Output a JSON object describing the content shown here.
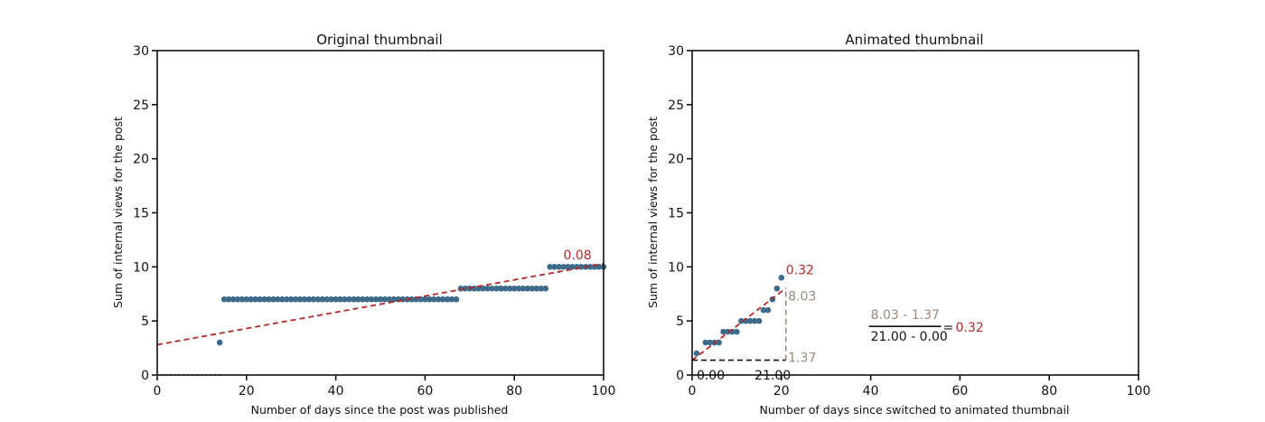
{
  "chart_data": [
    {
      "type": "scatter",
      "title": "Original thumbnail",
      "xlabel": "Number of days since the post was published",
      "ylabel": "Sum of internal views for the post",
      "xlim": [
        0,
        100
      ],
      "ylim": [
        0,
        30
      ],
      "xticks": [
        "0",
        "20",
        "40",
        "60",
        "80",
        "100"
      ],
      "yticks": [
        "0",
        "5",
        "10",
        "15",
        "20",
        "25",
        "30"
      ],
      "grid": false,
      "colors": {
        "points": "#3f6b8a",
        "trend": "#b02a2a"
      },
      "series": [
        {
          "type": "scatter",
          "segments": [
            {
              "x_from": 0,
              "x_to": 14,
              "step": 1,
              "y": 0
            },
            {
              "x_from": 14,
              "x_to": 14,
              "step": 1,
              "y": 3
            },
            {
              "x_from": 15,
              "x_to": 67,
              "step": 1,
              "y": 7
            },
            {
              "x_from": 68,
              "x_to": 87,
              "step": 1,
              "y": 8
            },
            {
              "x_from": 88,
              "x_to": 100,
              "step": 1,
              "y": 10
            }
          ]
        },
        {
          "type": "line",
          "style": "dashed",
          "x": [
            0,
            100
          ],
          "y": [
            2.8,
            10.3
          ]
        }
      ],
      "annotations": [
        {
          "text": "0.08",
          "x": 91,
          "y": 10.7,
          "color": "#b02a2a"
        }
      ]
    },
    {
      "type": "scatter",
      "title": "Animated thumbnail",
      "xlabel": "Number of days since switched to animated thumbnail",
      "ylabel": "Sum of internal views for the post",
      "xlim": [
        0,
        100
      ],
      "ylim": [
        0,
        30
      ],
      "xticks": [
        "0",
        "20",
        "40",
        "60",
        "80",
        "100"
      ],
      "yticks": [
        "0",
        "5",
        "10",
        "15",
        "20",
        "25",
        "30"
      ],
      "grid": false,
      "colors": {
        "points": "#3f6b8a",
        "trend": "#b02a2a",
        "helper": "#9a8a7a"
      },
      "series": [
        {
          "type": "scatter",
          "points": [
            [
              1,
              2
            ],
            [
              3,
              3
            ],
            [
              4,
              3
            ],
            [
              5,
              3
            ],
            [
              6,
              3
            ],
            [
              7,
              4
            ],
            [
              8,
              4
            ],
            [
              9,
              4
            ],
            [
              10,
              4
            ],
            [
              11,
              5
            ],
            [
              12,
              5
            ],
            [
              13,
              5
            ],
            [
              14,
              5
            ],
            [
              15,
              5
            ],
            [
              16,
              6
            ],
            [
              17,
              6
            ],
            [
              18,
              7
            ],
            [
              19,
              8
            ],
            [
              20,
              9
            ]
          ]
        },
        {
          "type": "line",
          "style": "dashed",
          "x": [
            0,
            21
          ],
          "y": [
            1.37,
            8.03
          ]
        }
      ],
      "annotations": [
        {
          "text": "0.32",
          "x": 21,
          "y": 9.3,
          "color": "#b02a2a"
        },
        {
          "text": "8.03",
          "x": 21.5,
          "y": 6.9,
          "color": "#9a8a7a"
        },
        {
          "text": "1.37",
          "x": 21.5,
          "y": 1.2,
          "color": "#9a8a7a"
        },
        {
          "text": "0.00",
          "x": 1,
          "y": -0.4,
          "color": "#111111"
        },
        {
          "text": "21.00",
          "x": 14,
          "y": -0.4,
          "color": "#111111"
        }
      ],
      "formula": {
        "numerator": "8.03 - 1.37",
        "denominator": "21.00 - 0.00",
        "equals": "=",
        "result": "0.32",
        "x": 40,
        "y": 4.5
      }
    }
  ]
}
